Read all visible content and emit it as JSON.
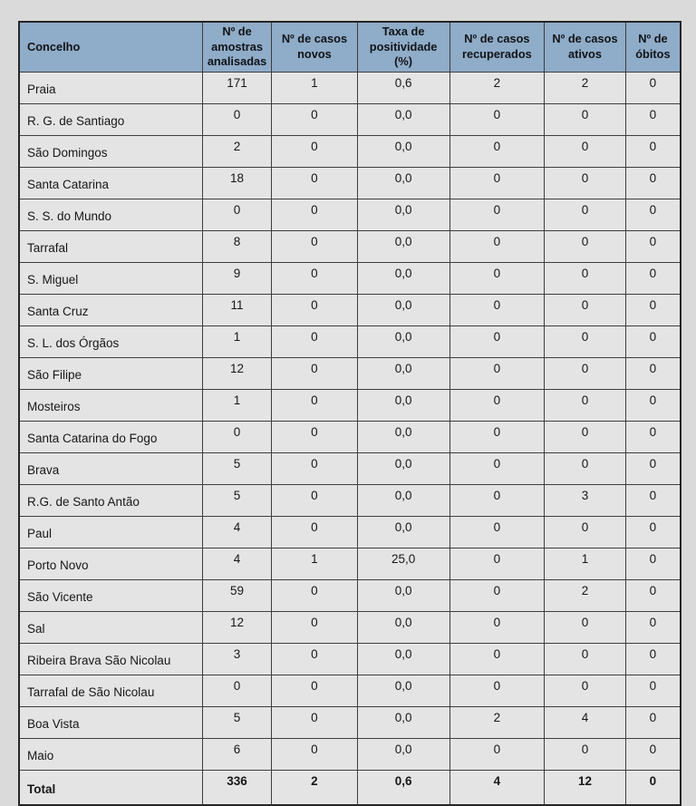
{
  "table": {
    "columns": [
      {
        "label": "Concelho"
      },
      {
        "label": "Nº de amostras analisadas"
      },
      {
        "label": "Nº de casos novos"
      },
      {
        "label": "Taxa de positividade (%)"
      },
      {
        "label": "Nº de casos recuperados"
      },
      {
        "label": "Nº de casos ativos"
      },
      {
        "label": "Nº de óbitos"
      }
    ],
    "rows": [
      {
        "concelho": "Praia",
        "values": [
          "171",
          "1",
          "0,6",
          "2",
          "2",
          "0"
        ]
      },
      {
        "concelho": "R. G. de Santiago",
        "values": [
          "0",
          "0",
          "0,0",
          "0",
          "0",
          "0"
        ]
      },
      {
        "concelho": "São Domingos",
        "values": [
          "2",
          "0",
          "0,0",
          "0",
          "0",
          "0"
        ]
      },
      {
        "concelho": "Santa Catarina",
        "values": [
          "18",
          "0",
          "0,0",
          "0",
          "0",
          "0"
        ]
      },
      {
        "concelho": "S. S. do Mundo",
        "values": [
          "0",
          "0",
          "0,0",
          "0",
          "0",
          "0"
        ]
      },
      {
        "concelho": "Tarrafal",
        "values": [
          "8",
          "0",
          "0,0",
          "0",
          "0",
          "0"
        ]
      },
      {
        "concelho": "S. Miguel",
        "values": [
          "9",
          "0",
          "0,0",
          "0",
          "0",
          "0"
        ]
      },
      {
        "concelho": "Santa Cruz",
        "values": [
          "11",
          "0",
          "0,0",
          "0",
          "0",
          "0"
        ]
      },
      {
        "concelho": "S. L. dos Órgãos",
        "values": [
          "1",
          "0",
          "0,0",
          "0",
          "0",
          "0"
        ]
      },
      {
        "concelho": "São Filipe",
        "values": [
          "12",
          "0",
          "0,0",
          "0",
          "0",
          "0"
        ]
      },
      {
        "concelho": "Mosteiros",
        "values": [
          "1",
          "0",
          "0,0",
          "0",
          "0",
          "0"
        ]
      },
      {
        "concelho": "Santa Catarina do Fogo",
        "values": [
          "0",
          "0",
          "0,0",
          "0",
          "0",
          "0"
        ]
      },
      {
        "concelho": "Brava",
        "values": [
          "5",
          "0",
          "0,0",
          "0",
          "0",
          "0"
        ]
      },
      {
        "concelho": "R.G. de Santo Antão",
        "values": [
          "5",
          "0",
          "0,0",
          "0",
          "3",
          "0"
        ]
      },
      {
        "concelho": "Paul",
        "values": [
          "4",
          "0",
          "0,0",
          "0",
          "0",
          "0"
        ]
      },
      {
        "concelho": "Porto Novo",
        "values": [
          "4",
          "1",
          "25,0",
          "0",
          "1",
          "0"
        ]
      },
      {
        "concelho": "São Vicente",
        "values": [
          "59",
          "0",
          "0,0",
          "0",
          "2",
          "0"
        ]
      },
      {
        "concelho": "Sal",
        "values": [
          "12",
          "0",
          "0,0",
          "0",
          "0",
          "0"
        ]
      },
      {
        "concelho": "Ribeira Brava São Nicolau",
        "values": [
          "3",
          "0",
          "0,0",
          "0",
          "0",
          "0"
        ]
      },
      {
        "concelho": "Tarrafal de São Nicolau",
        "values": [
          "0",
          "0",
          "0,0",
          "0",
          "0",
          "0"
        ]
      },
      {
        "concelho": "Boa Vista",
        "values": [
          "5",
          "0",
          "0,0",
          "2",
          "4",
          "0"
        ]
      },
      {
        "concelho": "Maio",
        "values": [
          "6",
          "0",
          "0,0",
          "0",
          "0",
          "0"
        ]
      }
    ],
    "total": {
      "label": "Total",
      "values": [
        "336",
        "2",
        "0,6",
        "4",
        "12",
        "0"
      ]
    }
  },
  "colors": {
    "page_bg": "#DADADA",
    "header_bg": "#8FACC8",
    "row_bg": "#E4E4E4",
    "border": "#3E3E3E",
    "text": "#171717"
  }
}
